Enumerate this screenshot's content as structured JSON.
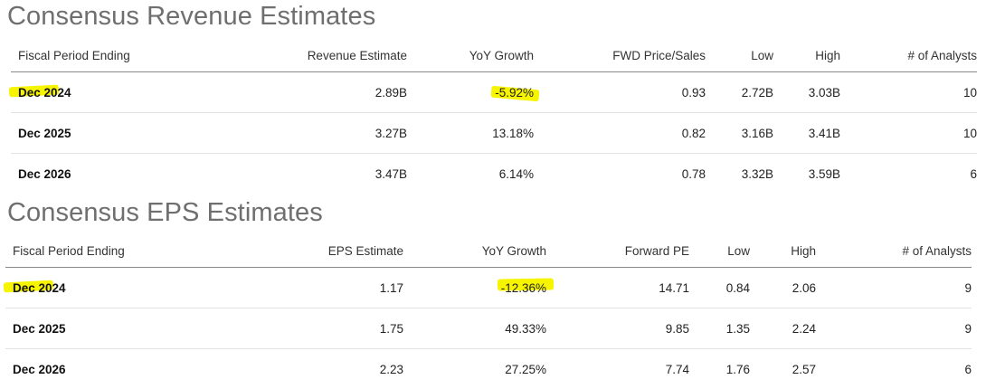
{
  "revenue": {
    "title": "Consensus Revenue Estimates",
    "headers": [
      "Fiscal Period Ending",
      "Revenue Estimate",
      "YoY Growth",
      "FWD Price/Sales",
      "Low",
      "High",
      "# of Analysts"
    ],
    "rows": [
      {
        "period": "Dec 2024",
        "estimate": "2.89B",
        "growth": "-5.92%",
        "multiple": "0.93",
        "low": "2.72B",
        "high": "3.03B",
        "analysts": "10"
      },
      {
        "period": "Dec 2025",
        "estimate": "3.27B",
        "growth": "13.18%",
        "multiple": "0.82",
        "low": "3.16B",
        "high": "3.41B",
        "analysts": "10"
      },
      {
        "period": "Dec 2026",
        "estimate": "3.47B",
        "growth": "6.14%",
        "multiple": "0.78",
        "low": "3.32B",
        "high": "3.59B",
        "analysts": "6"
      }
    ]
  },
  "eps": {
    "title": "Consensus EPS Estimates",
    "headers": [
      "Fiscal Period Ending",
      "EPS Estimate",
      "YoY Growth",
      "Forward PE",
      "Low",
      "High",
      "# of Analysts"
    ],
    "rows": [
      {
        "period": "Dec 2024",
        "estimate": "1.17",
        "growth": "-12.36%",
        "multiple": "14.71",
        "low": "0.84",
        "high": "2.06",
        "analysts": "9"
      },
      {
        "period": "Dec 2025",
        "estimate": "1.75",
        "growth": "49.33%",
        "multiple": "9.85",
        "low": "1.35",
        "high": "2.24",
        "analysts": "9"
      },
      {
        "period": "Dec 2026",
        "estimate": "2.23",
        "growth": "27.25%",
        "multiple": "7.74",
        "low": "1.76",
        "high": "2.57",
        "analysts": "6"
      }
    ]
  },
  "highlight_color": "#f7f400"
}
